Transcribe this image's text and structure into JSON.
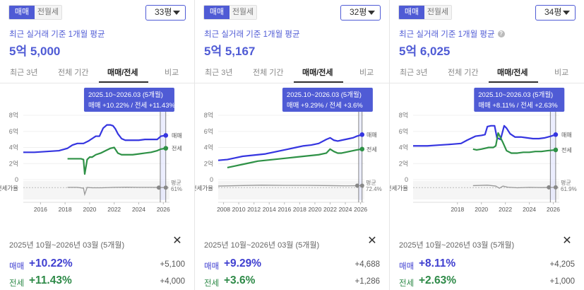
{
  "segment": {
    "sale_label": "매매",
    "rent_label": "전월세"
  },
  "subtitle": "최근 실거래 기준 1개월 평균",
  "tabs": [
    "최근 3년",
    "전체 기간",
    "매매/전세",
    "비교"
  ],
  "colors": {
    "sale": "#3535e0",
    "rent": "#2e9146",
    "ratio": "#999999",
    "accent": "#4f5bd5",
    "tooltip": "#4f5bd5"
  },
  "icons": {
    "dropdown": "chevron-down-icon",
    "help": "help-circle-icon",
    "close": "close-icon"
  },
  "panels": [
    {
      "size": "33평",
      "price": "5억 5,000",
      "show_help": false,
      "tooltip": {
        "period": "2025.10~2026.03 (5개월)",
        "change": "매매 +10.22%  /  전세 +11.43%"
      },
      "summary": {
        "period": "2025년 10월~2026년 03월 (5개월)",
        "sale_label": "매매",
        "sale_pct": "+10.22%",
        "sale_amt": "+5,100",
        "rent_label": "전세",
        "rent_pct": "+11.43%",
        "rent_amt": "+4,000"
      },
      "chart_data": {
        "type": "line",
        "x_ticks": [
          "2016",
          "2018",
          "2020",
          "2022",
          "2024",
          "2026"
        ],
        "x_range": [
          2014.6,
          2026.5
        ],
        "y_ticks": [
          "8억",
          "6억",
          "4억",
          "2억",
          "0"
        ],
        "y_range": [
          0,
          8
        ],
        "series": [
          {
            "name": "매매",
            "x": [
              2014.6,
              2015.5,
              2016.5,
              2017.5,
              2018.2,
              2018.6,
              2019.0,
              2019.5,
              2019.9,
              2020.2,
              2020.5,
              2020.8,
              2021.1,
              2021.4,
              2021.7,
              2021.9,
              2022.1,
              2022.3,
              2022.6,
              2022.9,
              2023.2,
              2023.6,
              2024.0,
              2024.5,
              2025.0,
              2025.5,
              2025.8,
              2026.2
            ],
            "values": [
              3.4,
              3.4,
              3.5,
              3.6,
              3.9,
              4.3,
              4.5,
              4.5,
              4.8,
              5.1,
              5.4,
              5.4,
              6.4,
              6.8,
              6.8,
              6.7,
              6.3,
              5.7,
              5.1,
              4.9,
              4.9,
              4.9,
              4.9,
              5.0,
              5.0,
              5.0,
              5.4,
              5.5
            ]
          },
          {
            "name": "전세",
            "x": [
              2018.2,
              2018.5,
              2018.9,
              2019.3,
              2019.5,
              2019.6,
              2019.8,
              2020.0,
              2020.2,
              2020.5,
              2020.9,
              2021.3,
              2021.7,
              2022.0,
              2022.3,
              2022.6,
              2023.0,
              2023.5,
              2024.0,
              2024.5,
              2025.0,
              2025.5,
              2025.8,
              2026.2
            ],
            "values": [
              2.6,
              2.6,
              2.6,
              2.6,
              2.5,
              0.7,
              2.5,
              2.8,
              2.8,
              3.1,
              3.3,
              3.6,
              3.9,
              4.0,
              3.3,
              3.1,
              3.1,
              3.1,
              3.2,
              3.3,
              3.4,
              3.6,
              3.8,
              3.9
            ]
          }
        ],
        "ratio": {
          "label": "전세가율",
          "avg_label": "평균",
          "avg_value": "61%",
          "x": [
            2018.2,
            2019.0,
            2019.5,
            2019.6,
            2019.8,
            2020.2,
            2021.0,
            2022.0,
            2023.0,
            2024.0,
            2025.0,
            2026.2
          ],
          "values": [
            62,
            62,
            58,
            30,
            62,
            60,
            60,
            62,
            63,
            62,
            62,
            61
          ]
        },
        "highlight": {
          "x_start": 2025.75,
          "x_end": 2026.2
        }
      }
    },
    {
      "size": "32평",
      "price": "5억 5,167",
      "show_help": false,
      "tooltip": {
        "period": "2025.10~2026.03 (5개월)",
        "change": "매매 +9.29%  /  전세 +3.6%"
      },
      "summary": {
        "period": "2025년 10월~2026년 03월 (5개월)",
        "sale_label": "매매",
        "sale_pct": "+9.29%",
        "sale_amt": "+4,688",
        "rent_label": "전세",
        "rent_pct": "+3.6%",
        "rent_amt": "+1,286"
      },
      "chart_data": {
        "type": "line",
        "x_ticks": [
          "2008",
          "2010",
          "2012",
          "2014",
          "2016",
          "2018",
          "2020",
          "2022",
          "2024",
          "2026"
        ],
        "x_range": [
          2007.3,
          2026.5
        ],
        "y_ticks": [
          "8억",
          "6억",
          "4억",
          "2억",
          "0"
        ],
        "y_range": [
          0,
          8
        ],
        "series": [
          {
            "name": "매매",
            "x": [
              2007.3,
              2008.5,
              2009.5,
              2010.5,
              2011.5,
              2012.5,
              2013.5,
              2014.5,
              2015.5,
              2016.5,
              2017.5,
              2018.5,
              2019.5,
              2020.5,
              2021.5,
              2022.0,
              2022.5,
              2023.0,
              2023.5,
              2024.0,
              2024.5,
              2025.0,
              2025.5,
              2026.2
            ],
            "values": [
              2.4,
              2.5,
              2.7,
              2.9,
              3.0,
              3.1,
              3.2,
              3.4,
              3.6,
              3.8,
              4.0,
              4.2,
              4.3,
              4.5,
              5.0,
              5.2,
              4.9,
              4.8,
              4.9,
              5.0,
              5.1,
              5.2,
              5.4,
              5.6
            ]
          },
          {
            "name": "전세",
            "x": [
              2008.5,
              2009.5,
              2010.5,
              2011.5,
              2012.5,
              2013.5,
              2014.5,
              2015.5,
              2016.5,
              2017.5,
              2018.5,
              2019.5,
              2020.5,
              2021.5,
              2022.0,
              2022.5,
              2023.0,
              2023.5,
              2024.0,
              2024.5,
              2025.0,
              2025.5,
              2026.2
            ],
            "values": [
              1.5,
              1.7,
              1.9,
              2.1,
              2.3,
              2.4,
              2.5,
              2.6,
              2.7,
              2.8,
              2.9,
              3.0,
              3.1,
              3.3,
              3.8,
              3.5,
              3.3,
              3.3,
              3.4,
              3.5,
              3.6,
              3.7,
              3.8
            ]
          }
        ],
        "ratio": {
          "label": "전세가율",
          "avg_label": "평균",
          "avg_value": "72.4%",
          "x": [
            2007.3,
            2010,
            2013,
            2016,
            2019,
            2022,
            2024,
            2026.2
          ],
          "values": [
            68,
            70,
            72,
            71,
            71,
            70,
            69,
            70
          ]
        },
        "highlight": {
          "x_start": 2025.75,
          "x_end": 2026.2
        }
      }
    },
    {
      "size": "34평",
      "price": "5억 6,025",
      "show_help": true,
      "tooltip": {
        "period": "2025.10~2026.03 (5개월)",
        "change": "매매 +8.11%  /  전세 +2.63%"
      },
      "summary": {
        "period": "2025년 10월~2026년 03월 (5개월)",
        "sale_label": "매매",
        "sale_pct": "+8.11%",
        "sale_amt": "+4,205",
        "rent_label": "전세",
        "rent_pct": "+2.63%",
        "rent_amt": "+1,000"
      },
      "chart_data": {
        "type": "line",
        "x_ticks": [
          "2018",
          "2020",
          "2022",
          "2024",
          "2026"
        ],
        "x_range": [
          2014.3,
          2026.5
        ],
        "y_ticks": [
          "8억",
          "6억",
          "4억",
          "2억",
          "0"
        ],
        "y_range": [
          0,
          8
        ],
        "series": [
          {
            "name": "매매",
            "x": [
              2014.3,
              2015.5,
              2016.5,
              2017.5,
              2018.3,
              2018.8,
              2019.5,
              2020.0,
              2020.3,
              2020.5,
              2020.8,
              2021.1,
              2021.3,
              2021.6,
              2021.9,
              2022.1,
              2022.4,
              2022.8,
              2023.3,
              2023.8,
              2024.3,
              2024.8,
              2025.3,
              2025.8,
              2026.2
            ],
            "values": [
              4.2,
              4.2,
              4.3,
              4.4,
              4.5,
              4.9,
              5.4,
              5.5,
              5.6,
              6.6,
              6.7,
              6.7,
              5.2,
              5.0,
              6.7,
              6.4,
              5.7,
              5.3,
              5.3,
              5.2,
              5.1,
              5.1,
              5.2,
              5.4,
              5.6
            ]
          },
          {
            "name": "전세",
            "x": [
              2019.3,
              2019.6,
              2020.0,
              2020.3,
              2020.6,
              2021.0,
              2021.2,
              2021.4,
              2021.8,
              2022.1,
              2022.5,
              2023.0,
              2023.5,
              2024.0,
              2024.5,
              2025.0,
              2025.5,
              2026.2
            ],
            "values": [
              3.8,
              3.7,
              3.8,
              3.9,
              4.0,
              4.0,
              4.2,
              5.8,
              4.6,
              3.6,
              3.3,
              3.3,
              3.4,
              3.4,
              3.5,
              3.5,
              3.6,
              3.7
            ]
          }
        ],
        "ratio": {
          "label": "전세가율",
          "avg_label": "평균",
          "avg_value": "61.9%",
          "x": [
            2019.3,
            2020.5,
            2021.2,
            2021.5,
            2021.8,
            2022.2,
            2023.0,
            2024.0,
            2025.0,
            2026.2
          ],
          "values": [
            70,
            72,
            68,
            58,
            68,
            63,
            60,
            62,
            61,
            62
          ]
        },
        "highlight": {
          "x_start": 2025.75,
          "x_end": 2026.2
        }
      }
    }
  ]
}
